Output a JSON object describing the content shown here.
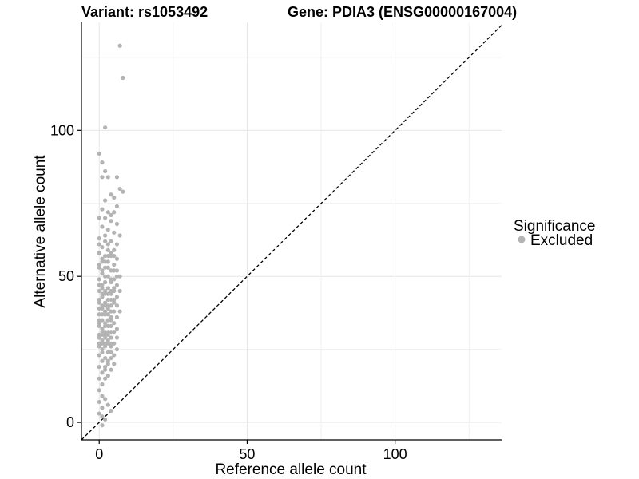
{
  "chart_data": {
    "type": "scatter",
    "title_left": "Variant: rs1053492",
    "title_right": "Gene: PDIA3 (ENSG00000167004)",
    "xlabel": "Reference allele count",
    "ylabel": "Alternative allele count",
    "xlim": [
      -6,
      136
    ],
    "ylim": [
      -6,
      137
    ],
    "x_ticks": [
      0,
      50,
      100
    ],
    "y_ticks": [
      0,
      50,
      100
    ],
    "grid": true,
    "reference_line": "y = x (dashed)",
    "legend": {
      "title": "Significance",
      "entries": [
        {
          "label": "Excluded",
          "color": "#b3b3b3"
        }
      ],
      "position": "right"
    },
    "series": [
      {
        "name": "Excluded",
        "color": "#b3b3b3",
        "points": [
          [
            7,
            129
          ],
          [
            8,
            118
          ],
          [
            2,
            101
          ],
          [
            0,
            92
          ],
          [
            1,
            89
          ],
          [
            1,
            84
          ],
          [
            3,
            84
          ],
          [
            2,
            86
          ],
          [
            6,
            84
          ],
          [
            7,
            80
          ],
          [
            8,
            79
          ],
          [
            4,
            78
          ],
          [
            5,
            77
          ],
          [
            2,
            76
          ],
          [
            6,
            74
          ],
          [
            1,
            73
          ],
          [
            3,
            72
          ],
          [
            5,
            72
          ],
          [
            0,
            70
          ],
          [
            2,
            70
          ],
          [
            4,
            69
          ],
          [
            6,
            68
          ],
          [
            1,
            67
          ],
          [
            3,
            66
          ],
          [
            5,
            65
          ],
          [
            7,
            64
          ],
          [
            0,
            63
          ],
          [
            2,
            62
          ],
          [
            4,
            62
          ],
          [
            6,
            61
          ],
          [
            1,
            60
          ],
          [
            3,
            59
          ],
          [
            5,
            59
          ],
          [
            0,
            58
          ],
          [
            2,
            57
          ],
          [
            4,
            57
          ],
          [
            6,
            56
          ],
          [
            1,
            55
          ],
          [
            3,
            55
          ],
          [
            5,
            54
          ],
          [
            0,
            53
          ],
          [
            2,
            53
          ],
          [
            4,
            52
          ],
          [
            6,
            52
          ],
          [
            7,
            50
          ],
          [
            1,
            51
          ],
          [
            3,
            50
          ],
          [
            5,
            49
          ],
          [
            0,
            49
          ],
          [
            2,
            48
          ],
          [
            4,
            48
          ],
          [
            6,
            47
          ],
          [
            1,
            47
          ],
          [
            3,
            46
          ],
          [
            5,
            46
          ],
          [
            7,
            45
          ],
          [
            0,
            45
          ],
          [
            2,
            44
          ],
          [
            4,
            44
          ],
          [
            6,
            43
          ],
          [
            1,
            43
          ],
          [
            3,
            42
          ],
          [
            5,
            42
          ],
          [
            0,
            41
          ],
          [
            2,
            41
          ],
          [
            4,
            40
          ],
          [
            6,
            40
          ],
          [
            1,
            39
          ],
          [
            3,
            39
          ],
          [
            5,
            38
          ],
          [
            7,
            38
          ],
          [
            0,
            37
          ],
          [
            2,
            37
          ],
          [
            4,
            36
          ],
          [
            6,
            36
          ],
          [
            1,
            35
          ],
          [
            3,
            35
          ],
          [
            5,
            34
          ],
          [
            0,
            34
          ],
          [
            2,
            33
          ],
          [
            4,
            33
          ],
          [
            6,
            32
          ],
          [
            1,
            32
          ],
          [
            3,
            31
          ],
          [
            5,
            31
          ],
          [
            0,
            30
          ],
          [
            2,
            30
          ],
          [
            4,
            29
          ],
          [
            6,
            29
          ],
          [
            1,
            28
          ],
          [
            3,
            28
          ],
          [
            5,
            27
          ],
          [
            0,
            27
          ],
          [
            2,
            26
          ],
          [
            4,
            26
          ],
          [
            6,
            25
          ],
          [
            1,
            25
          ],
          [
            3,
            24
          ],
          [
            5,
            23
          ],
          [
            0,
            23
          ],
          [
            2,
            22
          ],
          [
            4,
            22
          ],
          [
            1,
            21
          ],
          [
            3,
            20
          ],
          [
            5,
            20
          ],
          [
            0,
            19
          ],
          [
            2,
            19
          ],
          [
            4,
            18
          ],
          [
            1,
            17
          ],
          [
            3,
            16
          ],
          [
            0,
            15
          ],
          [
            2,
            15
          ],
          [
            1,
            13
          ],
          [
            0,
            11
          ],
          [
            1,
            9
          ],
          [
            2,
            8
          ],
          [
            0,
            7
          ],
          [
            3,
            6
          ],
          [
            1,
            5
          ],
          [
            4,
            4
          ],
          [
            0,
            3
          ],
          [
            1,
            2
          ],
          [
            2,
            1
          ],
          [
            1,
            -1
          ],
          [
            3,
            57
          ],
          [
            2,
            64
          ],
          [
            4,
            71
          ],
          [
            1,
            46
          ],
          [
            3,
            53
          ],
          [
            2,
            38
          ],
          [
            4,
            31
          ],
          [
            3,
            27
          ],
          [
            2,
            18
          ],
          [
            4,
            24
          ],
          [
            1,
            31
          ],
          [
            0,
            42
          ],
          [
            2,
            50
          ],
          [
            3,
            35
          ],
          [
            1,
            56
          ],
          [
            0,
            61
          ],
          [
            0,
            54
          ],
          [
            1,
            40
          ],
          [
            2,
            45
          ],
          [
            3,
            40
          ],
          [
            4,
            45
          ],
          [
            5,
            41
          ],
          [
            0,
            33
          ],
          [
            1,
            37
          ],
          [
            2,
            29
          ],
          [
            3,
            33
          ],
          [
            4,
            38
          ],
          [
            0,
            26
          ],
          [
            1,
            24
          ],
          [
            2,
            34
          ],
          [
            3,
            21
          ],
          [
            4,
            27
          ],
          [
            0,
            47
          ],
          [
            1,
            52
          ],
          [
            2,
            55
          ],
          [
            3,
            61
          ],
          [
            4,
            58
          ],
          [
            5,
            57
          ],
          [
            0,
            39
          ],
          [
            1,
            44
          ],
          [
            2,
            40
          ],
          [
            3,
            44
          ],
          [
            4,
            49
          ],
          [
            5,
            52
          ],
          [
            0,
            35
          ],
          [
            1,
            30
          ],
          [
            2,
            27
          ],
          [
            3,
            30
          ],
          [
            4,
            35
          ],
          [
            0,
            29
          ],
          [
            1,
            27
          ],
          [
            2,
            31
          ],
          [
            3,
            37
          ],
          [
            4,
            42
          ],
          [
            5,
            45
          ],
          [
            6,
            50
          ]
        ]
      }
    ]
  }
}
